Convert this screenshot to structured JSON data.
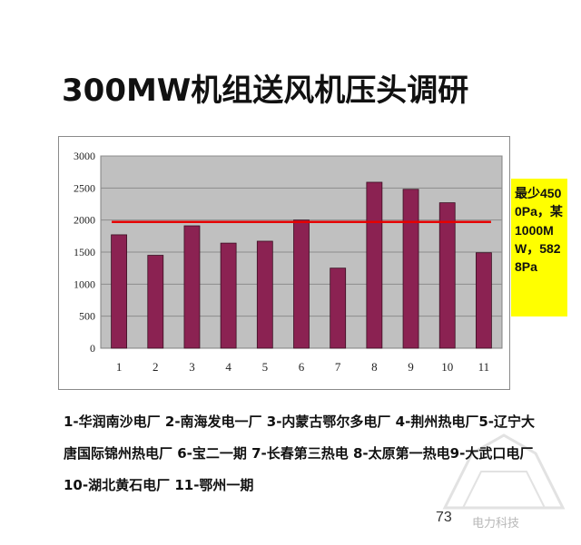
{
  "title": "300MW机组送风机压头调研",
  "callout_text": "最少4500Pa，某1000MW，5828Pa",
  "legend_text": "1-华润南沙电厂  2-南海发电一厂  3-内蒙古鄂尔多电厂  4-荆州热电厂5-辽宁大唐国际锦州热电厂  6-宝二一期  7-长春第三热电  8-太原第一热电9-大武口电厂  10-湖北黄石电厂  11-鄂州一期",
  "page_number": "73",
  "watermark": "电力科技",
  "colors": {
    "bar": "#8b2252",
    "plot_bg": "#c0c0c0",
    "reference_line": "#e60000",
    "callout_bg": "#ffff00"
  },
  "chart_data": {
    "type": "bar",
    "categories": [
      "1",
      "2",
      "3",
      "4",
      "5",
      "6",
      "7",
      "8",
      "9",
      "10",
      "11"
    ],
    "values": [
      1770,
      1450,
      1910,
      1640,
      1670,
      2000,
      1250,
      2590,
      2480,
      2270,
      1490
    ],
    "reference_line": 1970,
    "ylim": [
      0,
      3000
    ],
    "yticks": [
      0,
      500,
      1000,
      1500,
      2000,
      2500,
      3000
    ],
    "grid": true,
    "title": "",
    "xlabel": "",
    "ylabel": ""
  }
}
